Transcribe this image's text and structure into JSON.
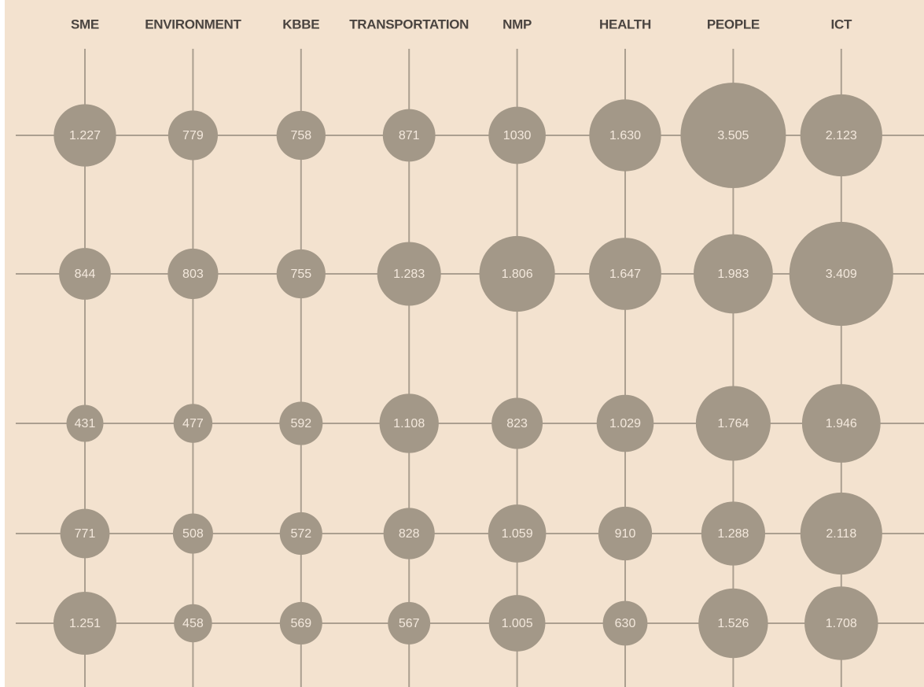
{
  "chart_data": {
    "type": "bubble-grid",
    "categories": [
      "SME",
      "ENVIRONMENT",
      "KBBE",
      "TRANSPORTATION",
      "NMP",
      "HEALTH",
      "PEOPLE",
      "ICT"
    ],
    "color": "#a39888",
    "series": [
      {
        "values": [
          1227,
          779,
          758,
          871,
          1030,
          1630,
          3505,
          2123
        ],
        "value_labels": [
          "1.227",
          "779",
          "758",
          "871",
          "1030",
          "1.630",
          "3.505",
          "2.123"
        ]
      },
      {
        "values": [
          844,
          803,
          755,
          1283,
          1806,
          1647,
          1983,
          3409
        ],
        "value_labels": [
          "844",
          "803",
          "755",
          "1.283",
          "1.806",
          "1.647",
          "1.983",
          "3.409"
        ]
      },
      {
        "values": [
          431,
          477,
          592,
          1108,
          823,
          1029,
          1764,
          1946
        ],
        "value_labels": [
          "431",
          "477",
          "592",
          "1.108",
          "823",
          "1.029",
          "1.764",
          "1.946"
        ]
      },
      {
        "values": [
          771,
          508,
          572,
          828,
          1059,
          910,
          1288,
          2118
        ],
        "value_labels": [
          "771",
          "508",
          "572",
          "828",
          "1.059",
          "910",
          "1.288",
          "2.118"
        ]
      },
      {
        "values": [
          1251,
          458,
          569,
          567,
          1005,
          630,
          1526,
          1708
        ],
        "value_labels": [
          "1.251",
          "458",
          "569",
          "567",
          "1.005",
          "630",
          "1.526",
          "1.708"
        ]
      }
    ]
  }
}
